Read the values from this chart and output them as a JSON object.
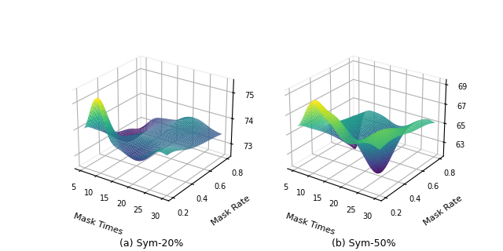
{
  "subplot_a_title": "(a) Sym-20%",
  "subplot_b_title": "(b) Sym-50%",
  "mask_times_range": [
    5,
    30
  ],
  "mask_rates_range": [
    0.2,
    0.8
  ],
  "mask_times_ticks": [
    5,
    10,
    15,
    20,
    25,
    30
  ],
  "mask_rates_ticks": [
    0.2,
    0.4,
    0.6,
    0.8
  ],
  "xlabel": "Mask Times",
  "ylabel": "Mask Rate",
  "zlim_a": [
    72.5,
    75.5
  ],
  "zlim_b": [
    61.5,
    69.5
  ],
  "zticks_a": [
    73,
    74,
    75
  ],
  "zticks_b": [
    63,
    65,
    67,
    69
  ],
  "colormap": "viridis",
  "figsize": [
    6.4,
    3.2
  ],
  "dpi": 100,
  "elev": 25,
  "azim": -55,
  "n_points": 60
}
